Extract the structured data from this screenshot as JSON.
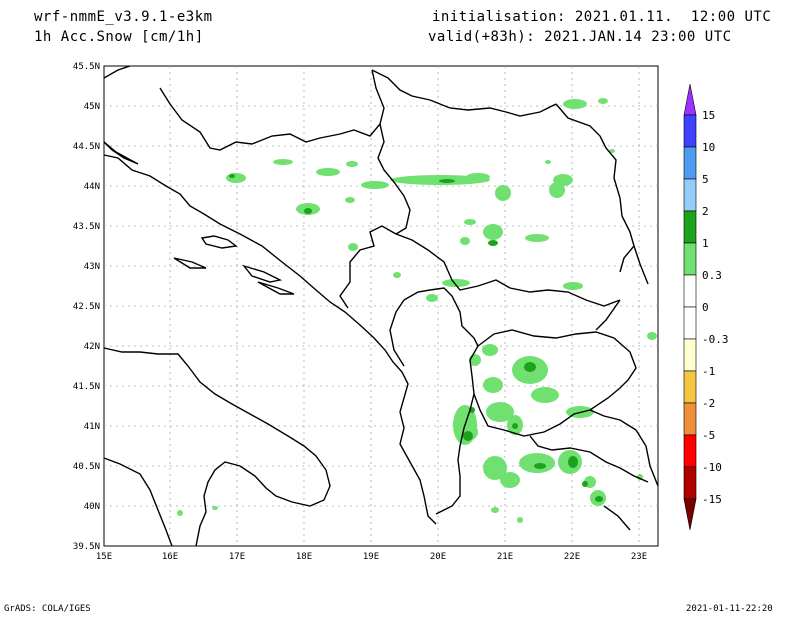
{
  "header": {
    "model": "wrf-nmmE_v3.9.1-e3km",
    "field": "1h Acc.Snow [cm/1h]",
    "init": "initialisation: 2021.01.11.  12:00 UTC",
    "valid": "valid(+83h): 2021.JAN.14 23:00 UTC"
  },
  "footer": {
    "left": "GrADS: COLA/IGES",
    "right": "2021-01-11-22:20"
  },
  "map": {
    "lat_labels": [
      "45.5N",
      "45N",
      "44.5N",
      "44N",
      "43.5N",
      "43N",
      "42.5N",
      "42N",
      "41.5N",
      "41N",
      "40.5N",
      "40N",
      "39.5N"
    ],
    "lon_labels": [
      "15E",
      "16E",
      "17E",
      "18E",
      "19E",
      "20E",
      "21E",
      "22E",
      "23E"
    ]
  },
  "colorbar": {
    "labels": [
      "15",
      "10",
      "5",
      "2",
      "1",
      "0.3",
      "0",
      "-0.3",
      "-1",
      "-2",
      "-5",
      "-10",
      "-15"
    ],
    "colors": [
      "#9a33ff",
      "#4040ff",
      "#4d9cf2",
      "#96ccf7",
      "#1ca21c",
      "#70e070",
      "#ffffff",
      "#ffffd0",
      "#f5c440",
      "#f0903a",
      "#ff0000",
      "#b00000",
      "#7a0000"
    ]
  }
}
